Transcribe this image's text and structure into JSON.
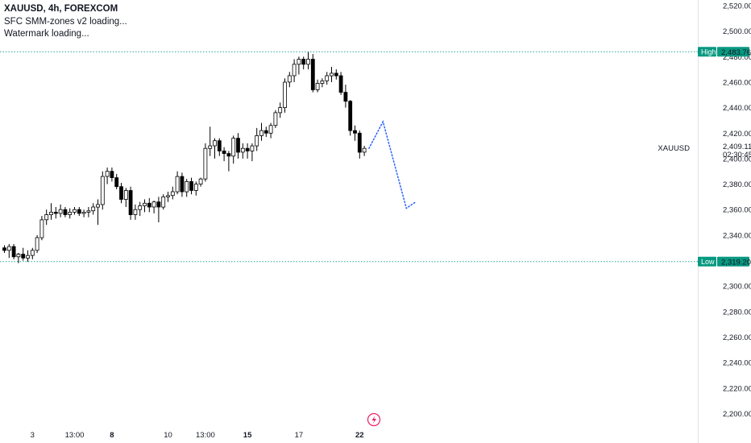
{
  "legend": {
    "title": "XAUUSD, 4h, FOREXCOM",
    "line2": "SFC SMM-zones v2 loading...",
    "line3": "Watermark loading..."
  },
  "colors": {
    "up_body": "#ffffff",
    "down_body": "#000000",
    "wick": "#000000",
    "level_line": "#26a69a",
    "tag_bg": "#089981",
    "projection": "#2962ff"
  },
  "chart_data": {
    "type": "candlestick",
    "symbol": "XAUUSD",
    "interval": "4h",
    "ylim": [
      2190,
      2530
    ],
    "y_ticks": [
      2200,
      2220,
      2240,
      2260,
      2280,
      2300,
      2340,
      2360,
      2380,
      2400,
      2420,
      2440,
      2460,
      2480,
      2500,
      2520
    ],
    "y_tick_labels": [
      "2,200.00",
      "2,220.00",
      "2,240.00",
      "2,260.00",
      "2,280.00",
      "2,300.00",
      "2,340.00",
      "2,360.00",
      "2,380.00",
      "2,400.00",
      "2,420.00",
      "2,440.00",
      "2,460.00",
      "2,480.00",
      "2,500.00",
      "2,520.00"
    ],
    "x_ticks": [
      {
        "label": "3",
        "bar": 6,
        "bold": false
      },
      {
        "label": "13:00",
        "bar": 15,
        "bold": false
      },
      {
        "label": "8",
        "bar": 23,
        "bold": true
      },
      {
        "label": "10",
        "bar": 35,
        "bold": false
      },
      {
        "label": "13:00",
        "bar": 43,
        "bold": false
      },
      {
        "label": "15",
        "bar": 52,
        "bold": true
      },
      {
        "label": "17",
        "bar": 63,
        "bold": false
      },
      {
        "label": "22",
        "bar": 76,
        "bold": true
      }
    ],
    "ohlc": [
      [
        2330,
        2332,
        2326,
        2328
      ],
      [
        2328,
        2333,
        2322,
        2331
      ],
      [
        2331,
        2333,
        2321,
        2323
      ],
      [
        2323,
        2326,
        2318,
        2325
      ],
      [
        2325,
        2330,
        2320,
        2322
      ],
      [
        2322,
        2328,
        2319,
        2324
      ],
      [
        2324,
        2330,
        2321,
        2328
      ],
      [
        2328,
        2340,
        2326,
        2338
      ],
      [
        2338,
        2355,
        2336,
        2352
      ],
      [
        2352,
        2360,
        2348,
        2356
      ],
      [
        2356,
        2365,
        2352,
        2358
      ],
      [
        2358,
        2362,
        2353,
        2357
      ],
      [
        2357,
        2364,
        2354,
        2360
      ],
      [
        2360,
        2362,
        2354,
        2356
      ],
      [
        2356,
        2361,
        2353,
        2358
      ],
      [
        2358,
        2362,
        2356,
        2360
      ],
      [
        2360,
        2362,
        2355,
        2357
      ],
      [
        2357,
        2360,
        2354,
        2358
      ],
      [
        2358,
        2362,
        2354,
        2359
      ],
      [
        2359,
        2365,
        2356,
        2362
      ],
      [
        2362,
        2368,
        2348,
        2364
      ],
      [
        2364,
        2390,
        2360,
        2386
      ],
      [
        2386,
        2393,
        2380,
        2390
      ],
      [
        2390,
        2393,
        2382,
        2385
      ],
      [
        2385,
        2388,
        2376,
        2378
      ],
      [
        2378,
        2381,
        2365,
        2368
      ],
      [
        2368,
        2377,
        2362,
        2375
      ],
      [
        2375,
        2378,
        2352,
        2356
      ],
      [
        2356,
        2364,
        2352,
        2360
      ],
      [
        2360,
        2366,
        2355,
        2363
      ],
      [
        2363,
        2368,
        2358,
        2365
      ],
      [
        2365,
        2369,
        2358,
        2362
      ],
      [
        2362,
        2367,
        2357,
        2366
      ],
      [
        2366,
        2370,
        2350,
        2362
      ],
      [
        2362,
        2372,
        2360,
        2370
      ],
      [
        2370,
        2374,
        2366,
        2371
      ],
      [
        2371,
        2378,
        2368,
        2374
      ],
      [
        2374,
        2390,
        2372,
        2386
      ],
      [
        2386,
        2389,
        2370,
        2374
      ],
      [
        2374,
        2384,
        2370,
        2382
      ],
      [
        2382,
        2385,
        2372,
        2375
      ],
      [
        2375,
        2382,
        2371,
        2380
      ],
      [
        2380,
        2385,
        2378,
        2384
      ],
      [
        2384,
        2412,
        2382,
        2408
      ],
      [
        2408,
        2425,
        2402,
        2410
      ],
      [
        2410,
        2416,
        2400,
        2414
      ],
      [
        2414,
        2416,
        2402,
        2406
      ],
      [
        2406,
        2409,
        2398,
        2404
      ],
      [
        2404,
        2406,
        2390,
        2402
      ],
      [
        2402,
        2418,
        2396,
        2416
      ],
      [
        2416,
        2420,
        2400,
        2405
      ],
      [
        2405,
        2412,
        2400,
        2408
      ],
      [
        2408,
        2412,
        2400,
        2406
      ],
      [
        2406,
        2412,
        2398,
        2410
      ],
      [
        2410,
        2424,
        2406,
        2418
      ],
      [
        2418,
        2428,
        2414,
        2422
      ],
      [
        2422,
        2425,
        2417,
        2420
      ],
      [
        2420,
        2428,
        2416,
        2426
      ],
      [
        2426,
        2438,
        2424,
        2436
      ],
      [
        2436,
        2444,
        2432,
        2440
      ],
      [
        2440,
        2463,
        2436,
        2460
      ],
      [
        2460,
        2468,
        2456,
        2465
      ],
      [
        2465,
        2478,
        2460,
        2474
      ],
      [
        2474,
        2480,
        2466,
        2478
      ],
      [
        2478,
        2480,
        2470,
        2474
      ],
      [
        2474,
        2484,
        2470,
        2478
      ],
      [
        2478,
        2482,
        2452,
        2454
      ],
      [
        2454,
        2462,
        2452,
        2459
      ],
      [
        2459,
        2463,
        2456,
        2461
      ],
      [
        2461,
        2468,
        2458,
        2465
      ],
      [
        2465,
        2472,
        2460,
        2467
      ],
      [
        2467,
        2470,
        2462,
        2465
      ],
      [
        2465,
        2468,
        2450,
        2452
      ],
      [
        2452,
        2458,
        2440,
        2445
      ],
      [
        2445,
        2446,
        2418,
        2422
      ],
      [
        2422,
        2426,
        2414,
        2420
      ],
      [
        2420,
        2422,
        2400,
        2405
      ],
      [
        2405,
        2410,
        2402,
        2408
      ]
    ],
    "projection": [
      {
        "bar": 78,
        "price": 2408
      },
      {
        "bar": 81,
        "price": 2429
      },
      {
        "bar": 86,
        "price": 2361
      },
      {
        "bar": 88,
        "price": 2366
      }
    ],
    "levels": [
      {
        "label": "High",
        "value": "2,483.76",
        "price": 2483.76
      },
      {
        "label": "Low",
        "value": "2,319.20",
        "price": 2319.2
      }
    ],
    "current": {
      "symbol": "XAUUSD",
      "price": "2,409.11",
      "countdown": "02:30:45",
      "value": 2409.11
    }
  }
}
